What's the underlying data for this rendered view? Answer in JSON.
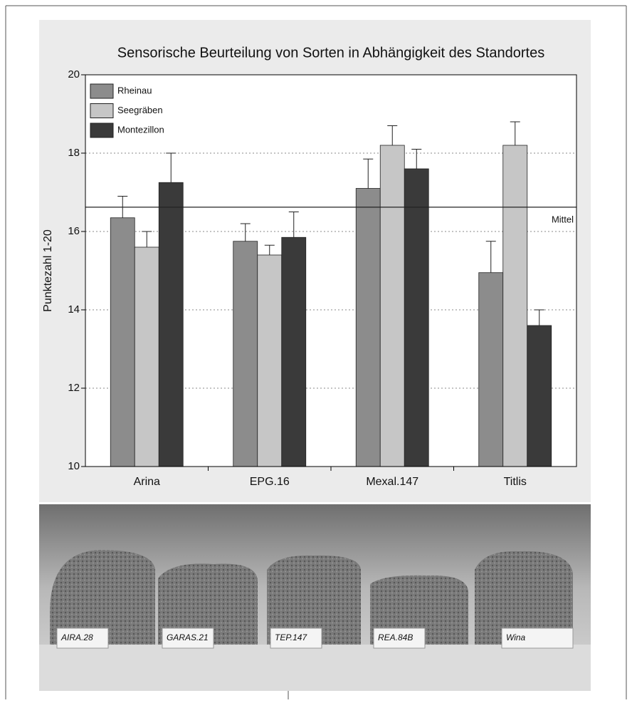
{
  "chart_data": {
    "type": "bar",
    "title": "Sensorische Beurteilung von Sorten in Abhängigkeit des Standortes",
    "y_label": "Punktezahl 1-20",
    "categories": [
      "Arina",
      "EPG.16",
      "Mexal.147",
      "Titlis"
    ],
    "series": [
      {
        "name": "Rheinau",
        "color": "#8c8c8c",
        "values": [
          16.35,
          15.75,
          17.1,
          14.95
        ],
        "errors": [
          0.55,
          0.45,
          0.75,
          0.8
        ]
      },
      {
        "name": "Seegräben",
        "color": "#c6c6c6",
        "values": [
          15.6,
          15.4,
          18.2,
          18.2
        ],
        "errors": [
          0.4,
          0.25,
          0.5,
          0.6
        ]
      },
      {
        "name": "Montezillon",
        "color": "#3a3a3a",
        "values": [
          17.25,
          15.85,
          17.6,
          13.6
        ],
        "errors": [
          0.75,
          0.65,
          0.5,
          0.4
        ]
      }
    ],
    "reference_line": {
      "value": 16.62,
      "label": "Mittel"
    },
    "ylim": [
      10,
      20
    ],
    "yticks": [
      10,
      12,
      14,
      16,
      18,
      20
    ],
    "grid": true,
    "legend": "top-left"
  },
  "photo": {
    "labels": [
      "AIRA.28",
      "GARAS.21",
      "TEP.147",
      "REA.84B",
      "Wina"
    ]
  }
}
